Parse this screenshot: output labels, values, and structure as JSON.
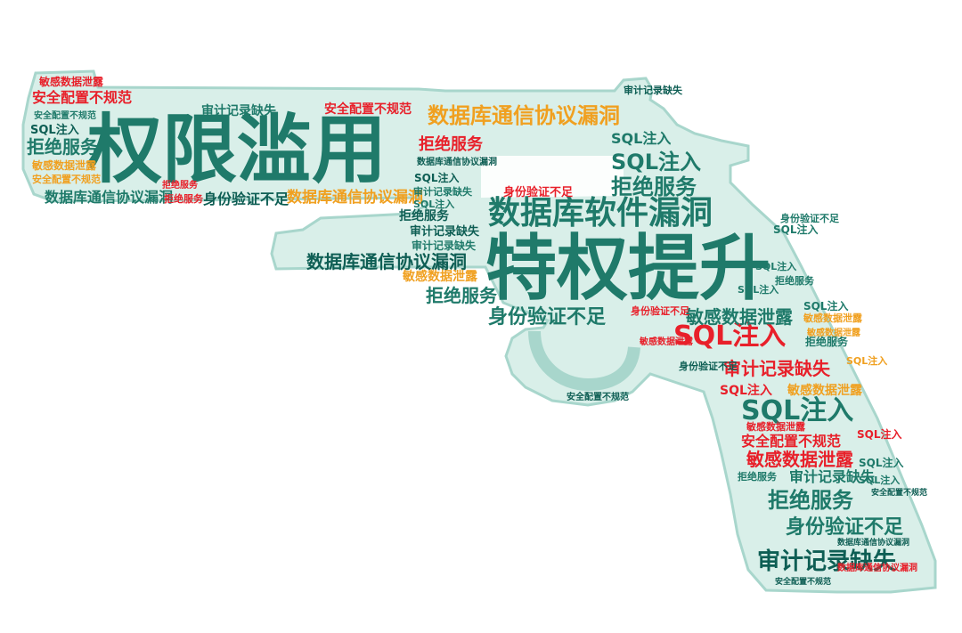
{
  "palette": {
    "teal": "#1f7a6a",
    "dark_teal": "#0e5e54",
    "red": "#e8202a",
    "orange": "#f0a020",
    "gun_fill": "#d9efe9",
    "gun_stroke": "#a8d6cc",
    "background": "#ffffff"
  },
  "words": [
    {
      "text": "权限滥用",
      "color": "#1f7a6a"
    },
    {
      "text": "特权提升",
      "color": "#1f7a6a"
    },
    {
      "text": "数据库软件漏洞",
      "color": "#1f7a6a"
    },
    {
      "text": "数据库通信协议漏洞",
      "color": "#f0a020"
    },
    {
      "text": "数据库通信协议漏洞",
      "color": "#0e5e54"
    },
    {
      "text": "数据库通信协议漏洞",
      "color": "#1f7a6a"
    },
    {
      "text": "数据库通信协议漏洞",
      "color": "#f0a020"
    },
    {
      "text": "SQL注入",
      "color": "#e8202a"
    },
    {
      "text": "SQL注入",
      "color": "#1f7a6a"
    },
    {
      "text": "SQL注入",
      "color": "#1f7a6a"
    },
    {
      "text": "SQL注入",
      "color": "#1f7a6a"
    },
    {
      "text": "SQL注入",
      "color": "#e8202a"
    },
    {
      "text": "拒绝服务",
      "color": "#1f7a6a"
    },
    {
      "text": "拒绝服务",
      "color": "#e8202a"
    },
    {
      "text": "拒绝服务",
      "color": "#1f7a6a"
    },
    {
      "text": "拒绝服务",
      "color": "#1f7a6a"
    },
    {
      "text": "拒绝服务",
      "color": "#1f7a6a"
    },
    {
      "text": "身份验证不足",
      "color": "#1f7a6a"
    },
    {
      "text": "身份验证不足",
      "color": "#1f7a6a"
    },
    {
      "text": "身份验证不足",
      "color": "#0e5e54"
    },
    {
      "text": "身份验证不足",
      "color": "#e8202a"
    },
    {
      "text": "审计记录缺失",
      "color": "#0e5e54"
    },
    {
      "text": "审计记录缺失",
      "color": "#e8202a"
    },
    {
      "text": "审计记录缺失",
      "color": "#1f7a6a"
    },
    {
      "text": "审计记录缺失",
      "color": "#1f7a6a"
    },
    {
      "text": "安全配置不规范",
      "color": "#e8202a"
    },
    {
      "text": "安全配置不规范",
      "color": "#e8202a"
    },
    {
      "text": "安全配置不规范",
      "color": "#e8202a"
    },
    {
      "text": "敏感数据泄露",
      "color": "#1f7a6a"
    },
    {
      "text": "敏感数据泄露",
      "color": "#e8202a"
    },
    {
      "text": "敏感数据泄露",
      "color": "#f0a020"
    },
    {
      "text": "敏感数据泄露",
      "color": "#f0a020"
    },
    {
      "text": "敏感数据泄露",
      "color": "#e8202a"
    },
    {
      "text": "拒绝服务",
      "color": "#0e5e54"
    },
    {
      "text": "SQL注入",
      "color": "#0e5e54"
    },
    {
      "text": "安全配置不规范",
      "color": "#f0a020"
    },
    {
      "text": "审计记录缺失",
      "color": "#0e5e54"
    },
    {
      "text": "敏感数据泄露",
      "color": "#f0a020"
    },
    {
      "text": "数据库通信协议漏洞",
      "color": "#0e5e54"
    },
    {
      "text": "拒绝服务",
      "color": "#e8202a"
    },
    {
      "text": "SQL注入",
      "color": "#0e5e54"
    },
    {
      "text": "身份验证不足",
      "color": "#e8202a"
    },
    {
      "text": "SQL注入",
      "color": "#1f7a6a"
    },
    {
      "text": "拒绝服务",
      "color": "#1f7a6a"
    },
    {
      "text": "审计记录缺失",
      "color": "#0e5e54"
    },
    {
      "text": "敏感数据泄露",
      "color": "#e8202a"
    },
    {
      "text": "安全配置不规范",
      "color": "#0e5e54"
    },
    {
      "text": "SQL注入",
      "color": "#1f7a6a"
    },
    {
      "text": "身份验证不足",
      "color": "#1f7a6a"
    },
    {
      "text": "拒绝服务",
      "color": "#1f7a6a"
    },
    {
      "text": "SQL注入",
      "color": "#1f7a6a"
    },
    {
      "text": "SQL注入",
      "color": "#e8202a"
    },
    {
      "text": "拒绝服务",
      "color": "#1f7a6a"
    },
    {
      "text": "敏感数据泄露",
      "color": "#f0a020"
    },
    {
      "text": "SQL注入",
      "color": "#1f7a6a"
    },
    {
      "text": "SQL注入",
      "color": "#f0a020"
    },
    {
      "text": "审计记录缺失",
      "color": "#1f7a6a"
    },
    {
      "text": "SQL注入",
      "color": "#1f7a6a"
    },
    {
      "text": "拒绝服务",
      "color": "#e8202a"
    },
    {
      "text": "SQL注入",
      "color": "#1f7a6a"
    },
    {
      "text": "身份验证不足",
      "color": "#0e5e54"
    },
    {
      "text": "安全配置不规范",
      "color": "#1f7a6a"
    },
    {
      "text": "敏感数据泄露",
      "color": "#e8202a"
    },
    {
      "text": "数据库通信协议漏洞",
      "color": "#e8202a"
    },
    {
      "text": "SQL注入",
      "color": "#1f7a6a"
    },
    {
      "text": "安全配置不规范",
      "color": "#0e5e54"
    },
    {
      "text": "审计记录缺失",
      "color": "#1f7a6a"
    },
    {
      "text": "安全配置不规范",
      "color": "#0e5e54"
    },
    {
      "text": "数据库通信协议漏洞",
      "color": "#0e5e54"
    },
    {
      "text": "敏感数据泄露",
      "color": "#f0a020"
    }
  ]
}
